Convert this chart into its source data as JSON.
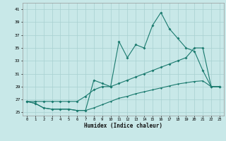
{
  "x": [
    0,
    1,
    2,
    3,
    4,
    5,
    6,
    7,
    8,
    9,
    10,
    11,
    12,
    13,
    14,
    15,
    16,
    17,
    18,
    19,
    20,
    21,
    22,
    23
  ],
  "line_main": [
    26.7,
    26.4,
    25.7,
    25.5,
    25.5,
    25.5,
    25.3,
    25.3,
    30.0,
    29.5,
    29.0,
    36.0,
    33.5,
    35.5,
    35.0,
    38.5,
    40.5,
    38.0,
    36.5,
    35.0,
    34.5,
    31.5,
    29.0,
    29.0
  ],
  "line_upper": [
    26.7,
    26.7,
    26.7,
    26.7,
    26.7,
    26.7,
    26.7,
    27.5,
    28.5,
    29.0,
    29.0,
    29.5,
    30.0,
    30.5,
    31.0,
    31.5,
    32.0,
    32.5,
    33.0,
    33.5,
    35.0,
    35.0,
    29.0,
    29.0
  ],
  "line_lower": [
    26.7,
    26.4,
    25.7,
    25.5,
    25.5,
    25.5,
    25.3,
    25.3,
    25.7,
    26.2,
    26.7,
    27.2,
    27.5,
    27.9,
    28.2,
    28.5,
    28.8,
    29.1,
    29.4,
    29.6,
    29.8,
    29.9,
    29.0,
    29.0
  ],
  "bg_color": "#c8e8e8",
  "grid_color": "#a8d0d0",
  "line_color": "#1a7a6e",
  "xlabel": "Humidex (Indice chaleur)",
  "xlim": [
    -0.5,
    23.5
  ],
  "ylim": [
    24.5,
    42.0
  ],
  "yticks": [
    25,
    27,
    29,
    31,
    33,
    35,
    37,
    39,
    41
  ],
  "xticks": [
    0,
    1,
    2,
    3,
    4,
    5,
    6,
    7,
    8,
    9,
    10,
    11,
    12,
    13,
    14,
    15,
    16,
    17,
    18,
    19,
    20,
    21,
    22,
    23
  ]
}
